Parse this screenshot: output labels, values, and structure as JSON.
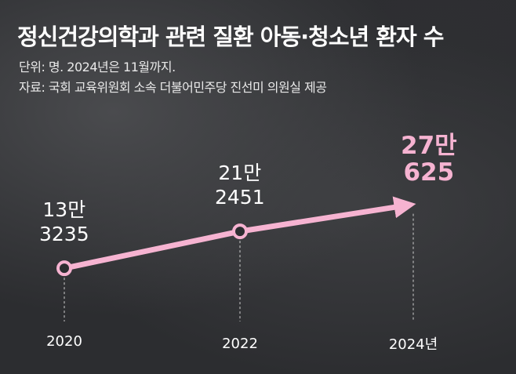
{
  "header": {
    "title": "정신건강의학과 관련 질환 아동·청소년 환자 수",
    "unit_note": "단위: 명. 2024년은 11월까지.",
    "source": "자료: 국회 교육위원회 소속 더불어민주당 진선미 의원실 제공"
  },
  "chart_data": {
    "type": "line",
    "title": "정신건강의학과 관련 질환 아동·청소년 환자 수",
    "xlabel": "",
    "ylabel": "",
    "x": [
      "2020",
      "2022",
      "2024년"
    ],
    "values": [
      133235,
      212451,
      270625
    ],
    "labels": [
      {
        "line1": "13만",
        "line2": "3235"
      },
      {
        "line1": "21만",
        "line2": "2451"
      },
      {
        "line1": "27만",
        "line2": "625"
      }
    ],
    "ylim": [
      120000,
      280000
    ],
    "grid": false,
    "legend": "none",
    "colors": {
      "line": "#f6b3d1",
      "marker_fill": "#2c2d30",
      "highlight_label": "#f6b3d1"
    }
  }
}
